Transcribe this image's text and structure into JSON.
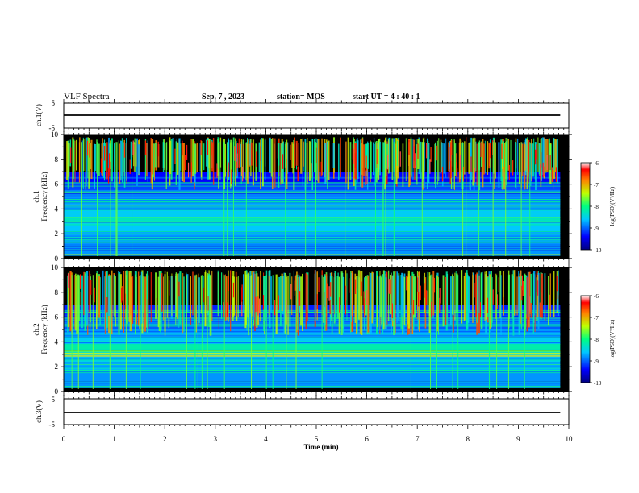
{
  "header": {
    "title": "VLF Spectra",
    "date": "Sep. 7 , 2023",
    "station": "station= MOS",
    "start": "start UT =  4 : 40 : 1"
  },
  "chart_data": {
    "type": "heatmap",
    "xlabel": "Time (min)",
    "xlim": [
      0,
      10
    ],
    "x_ticks": [
      "0",
      "1",
      "2",
      "3",
      "4",
      "5",
      "6",
      "7",
      "8",
      "9",
      "10"
    ],
    "data_end_min": 9.83,
    "panels": [
      {
        "id": "ch1-waveform",
        "type": "line",
        "ylabel": "ch.1(V)",
        "ylim": [
          -5,
          5
        ],
        "y_ticks": [
          "5",
          "-5"
        ],
        "level": 0
      },
      {
        "id": "ch1-spectrogram",
        "type": "heatmap",
        "ylabel_channel": "ch.1",
        "ylabel": "Frequency (kHz)",
        "ylim": [
          0,
          10
        ],
        "y_ticks": [
          "0",
          "2",
          "4",
          "6",
          "8",
          "10"
        ],
        "colorbar": {
          "label": "log(PSD)(V²/Hz)",
          "range": [
            -10,
            -6
          ],
          "ticks": [
            "-6",
            "-7",
            "-8",
            "-9",
            "-10"
          ]
        }
      },
      {
        "id": "ch2-spectrogram",
        "type": "heatmap",
        "ylabel_channel": "ch.2",
        "ylabel": "Frequency (kHz)",
        "ylim": [
          0,
          10
        ],
        "y_ticks": [
          "0",
          "2",
          "4",
          "6",
          "8",
          "10"
        ],
        "colorbar": {
          "label": "log(PSD)(V²/Hz)",
          "range": [
            -10,
            -6
          ],
          "ticks": [
            "-6",
            "-7",
            "-8",
            "-9",
            "-10"
          ]
        }
      },
      {
        "id": "ch3-waveform",
        "type": "line",
        "ylabel": "ch.3(V)",
        "ylim": [
          -5,
          5
        ],
        "y_ticks": [
          "5",
          "-5"
        ],
        "level": 0
      }
    ]
  }
}
